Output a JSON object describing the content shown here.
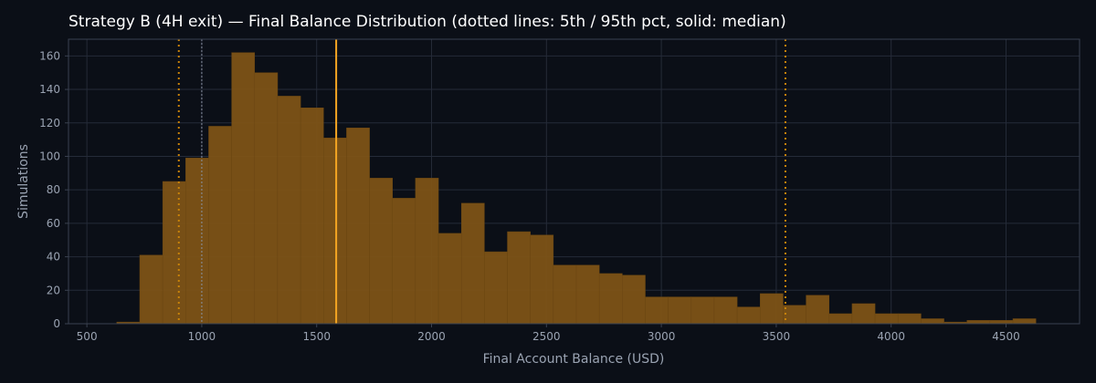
{
  "chart_data": {
    "type": "bar",
    "title": "Strategy B (4H exit) — Final Balance Distribution (dotted lines: 5th / 95th pct, solid: median)",
    "xlabel": "Final Account Balance (USD)",
    "ylabel": "Simulations",
    "xlim": [
      420,
      4820
    ],
    "ylim": [
      0,
      170
    ],
    "xticks": [
      500,
      1000,
      1500,
      2000,
      2500,
      3000,
      3500,
      4000,
      4500
    ],
    "yticks": [
      0,
      20,
      40,
      60,
      80,
      100,
      120,
      140,
      160
    ],
    "grid": true,
    "bins": [
      {
        "x0": 630,
        "x1": 730,
        "count": 1
      },
      {
        "x0": 730,
        "x1": 830,
        "count": 41
      },
      {
        "x0": 830,
        "x1": 930,
        "count": 85
      },
      {
        "x0": 930,
        "x1": 1030,
        "count": 99
      },
      {
        "x0": 1030,
        "x1": 1130,
        "count": 118
      },
      {
        "x0": 1130,
        "x1": 1230,
        "count": 162
      },
      {
        "x0": 1230,
        "x1": 1330,
        "count": 150
      },
      {
        "x0": 1330,
        "x1": 1430,
        "count": 136
      },
      {
        "x0": 1430,
        "x1": 1530,
        "count": 129
      },
      {
        "x0": 1530,
        "x1": 1630,
        "count": 111
      },
      {
        "x0": 1630,
        "x1": 1730,
        "count": 117
      },
      {
        "x0": 1730,
        "x1": 1830,
        "count": 87
      },
      {
        "x0": 1830,
        "x1": 1930,
        "count": 75
      },
      {
        "x0": 1930,
        "x1": 2030,
        "count": 87
      },
      {
        "x0": 2030,
        "x1": 2130,
        "count": 54
      },
      {
        "x0": 2130,
        "x1": 2230,
        "count": 72
      },
      {
        "x0": 2230,
        "x1": 2330,
        "count": 43
      },
      {
        "x0": 2330,
        "x1": 2430,
        "count": 55
      },
      {
        "x0": 2430,
        "x1": 2530,
        "count": 53
      },
      {
        "x0": 2530,
        "x1": 2630,
        "count": 35
      },
      {
        "x0": 2630,
        "x1": 2730,
        "count": 35
      },
      {
        "x0": 2730,
        "x1": 2830,
        "count": 30
      },
      {
        "x0": 2830,
        "x1": 2930,
        "count": 29
      },
      {
        "x0": 2930,
        "x1": 3030,
        "count": 16
      },
      {
        "x0": 3030,
        "x1": 3130,
        "count": 16
      },
      {
        "x0": 3130,
        "x1": 3230,
        "count": 16
      },
      {
        "x0": 3230,
        "x1": 3330,
        "count": 16
      },
      {
        "x0": 3330,
        "x1": 3430,
        "count": 10
      },
      {
        "x0": 3430,
        "x1": 3530,
        "count": 18
      },
      {
        "x0": 3530,
        "x1": 3630,
        "count": 11
      },
      {
        "x0": 3630,
        "x1": 3730,
        "count": 17
      },
      {
        "x0": 3730,
        "x1": 3830,
        "count": 6
      },
      {
        "x0": 3830,
        "x1": 3930,
        "count": 12
      },
      {
        "x0": 3930,
        "x1": 4030,
        "count": 6
      },
      {
        "x0": 4030,
        "x1": 4130,
        "count": 6
      },
      {
        "x0": 4130,
        "x1": 4230,
        "count": 3
      },
      {
        "x0": 4230,
        "x1": 4330,
        "count": 1
      },
      {
        "x0": 4330,
        "x1": 4430,
        "count": 2
      },
      {
        "x0": 4430,
        "x1": 4530,
        "count": 2
      },
      {
        "x0": 4530,
        "x1": 4630,
        "count": 3
      }
    ],
    "reference_lines": [
      {
        "kind": "5th percentile",
        "x": 900,
        "style": "dotted",
        "color": "#c8820a"
      },
      {
        "kind": "median",
        "x": 1585,
        "style": "solid",
        "color": "#f5a623"
      },
      {
        "kind": "95th percentile",
        "x": 3540,
        "style": "dotted",
        "color": "#c8820a"
      },
      {
        "kind": "starting balance",
        "x": 1000,
        "style": "dotted",
        "color": "#8a93a3"
      }
    ],
    "colors": {
      "bar": "#7d5316",
      "bar_edge": "#6a4612",
      "background": "#0b0f17",
      "grid": "#252b38",
      "axis": "#3a4150",
      "text": "#9aa3b2",
      "title": "#ffffff"
    }
  }
}
